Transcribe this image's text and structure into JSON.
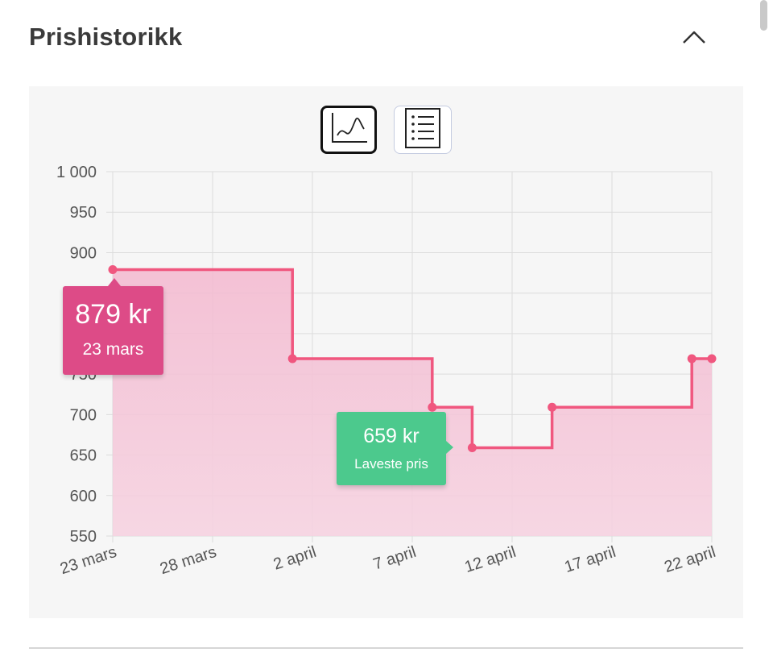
{
  "section": {
    "title": "Prishistorikk",
    "collapse_icon": "chevron-up-icon"
  },
  "view_toggles": [
    {
      "name": "graph-view",
      "icon": "line-chart-icon",
      "selected": true
    },
    {
      "name": "list-view",
      "icon": "list-icon",
      "selected": false
    }
  ],
  "colors": {
    "line": "#f0577f",
    "fill": "#f5c4d6",
    "max_tooltip": "#dd4b87",
    "min_tooltip": "#4cc98d"
  },
  "chart_data": {
    "type": "area",
    "step": true,
    "x_ticks": [
      "23 mars",
      "28 mars",
      "2 april",
      "7 april",
      "12 april",
      "17 april",
      "22 april"
    ],
    "y_ticks": [
      "1 000",
      "950",
      "900",
      "750",
      "700",
      "650",
      "600",
      "550"
    ],
    "ylim": [
      550,
      1000
    ],
    "grid": true,
    "points": [
      {
        "x": "2024-03-23",
        "y": 879
      },
      {
        "x": "2024-04-01",
        "y": 769
      },
      {
        "x": "2024-04-08",
        "y": 709
      },
      {
        "x": "2024-04-10",
        "y": 659
      },
      {
        "x": "2024-04-14",
        "y": 709
      },
      {
        "x": "2024-04-21",
        "y": 769
      },
      {
        "x": "2024-04-22",
        "y": 769
      }
    ],
    "max_annotation": {
      "price": "879 kr",
      "date": "23 mars"
    },
    "min_annotation": {
      "price": "659 kr",
      "label": "Laveste pris"
    }
  }
}
